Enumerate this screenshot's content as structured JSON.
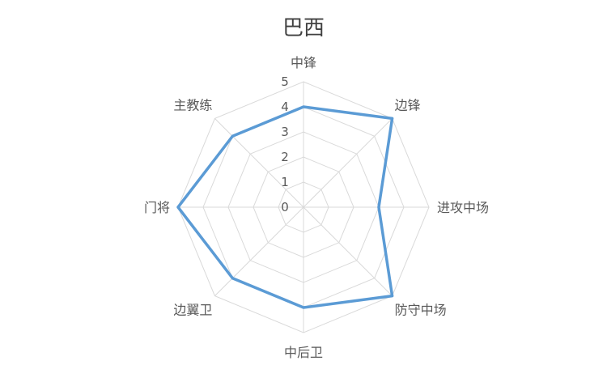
{
  "chart_data": {
    "type": "radar",
    "title": "巴西",
    "categories": [
      "中锋",
      "边锋",
      "进攻中场",
      "防守中场",
      "中后卫",
      "边翼卫",
      "门将",
      "主教练"
    ],
    "series": [
      {
        "values": [
          4,
          5,
          3,
          5,
          4,
          4,
          5,
          4
        ]
      }
    ],
    "rlim": [
      0,
      5
    ],
    "ticks": [
      "0",
      "1",
      "2",
      "3",
      "4",
      "5"
    ],
    "grid": true,
    "legend": "none",
    "colors": {
      "series": "#5b9bd5",
      "grid": "#d9d9d9",
      "text": "#595959"
    }
  }
}
